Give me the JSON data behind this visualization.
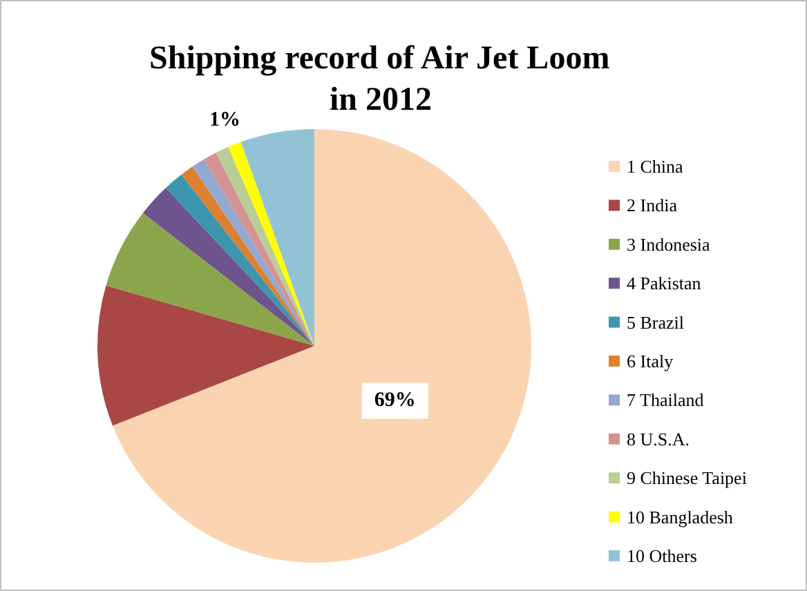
{
  "chart_data": {
    "type": "pie",
    "title": "Shipping record of Air Jet Loom\nin 2012",
    "categories": [
      "1 China",
      "2 India",
      "3 Indonesia",
      "4 Pakistan",
      "5 Brazil",
      "6 Italy",
      "7 Thailand",
      "8 U.S.A.",
      "9 Chinese Taipei",
      "10 Bangladesh",
      "10 Others"
    ],
    "values": [
      69,
      10.5,
      6,
      2.5,
      1.5,
      1,
      1,
      1,
      1,
      1,
      5.5
    ],
    "colors": [
      "#fad4b0",
      "#a94744",
      "#8ba54a",
      "#6e548d",
      "#3d96ae",
      "#dd8131",
      "#93a9d0",
      "#d49392",
      "#b9cd96",
      "#ffff00",
      "#92c3d5"
    ],
    "value_labels": [
      "69%",
      null,
      null,
      null,
      null,
      null,
      null,
      null,
      null,
      "1%",
      null
    ],
    "legend": "right"
  }
}
